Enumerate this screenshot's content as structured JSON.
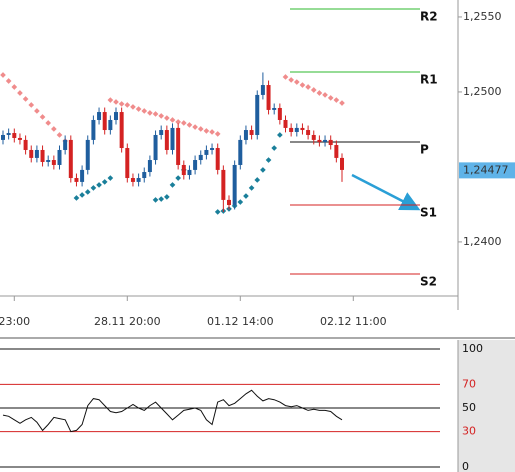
{
  "chart_data": [
    {
      "type": "candlestick",
      "categories": [
        null,
        null,
        "23:00",
        null,
        null,
        null,
        null,
        null,
        null,
        null,
        null,
        null,
        null,
        null,
        null,
        null,
        null,
        null,
        null,
        null,
        null,
        null,
        "28.11 20:00",
        null,
        null,
        null,
        null,
        null,
        null,
        null,
        null,
        null,
        null,
        null,
        null,
        null,
        null,
        null,
        null,
        null,
        null,
        null,
        "01.12 14:00",
        null,
        null,
        null,
        null,
        null,
        null,
        null,
        null,
        null,
        null,
        null,
        null,
        null,
        null,
        null,
        null,
        null,
        null,
        null,
        "02.12 11:00"
      ],
      "open": [
        1.2468,
        1.24713,
        1.24726,
        1.24693,
        1.2468,
        1.24613,
        1.2456,
        1.24613,
        1.24533,
        1.24546,
        1.24513,
        1.24613,
        1.2468,
        1.24426,
        1.244,
        1.2448,
        1.2468,
        1.24813,
        1.24866,
        1.24746,
        1.24813,
        1.24866,
        1.24626,
        1.24426,
        1.244,
        1.24426,
        1.24466,
        1.24546,
        1.24713,
        1.24746,
        1.24613,
        1.2476,
        1.24513,
        1.24446,
        1.2448,
        1.24546,
        1.2458,
        1.24613,
        1.24626,
        1.2448,
        1.2428,
        1.24246,
        1.24513,
        1.2468,
        1.24746,
        1.24713,
        1.2498,
        1.25046,
        1.2488,
        1.24893,
        1.24813,
        1.2476,
        1.24733,
        1.2476,
        1.24746,
        1.24713,
        1.2468,
        1.24666,
        1.2468,
        1.24646,
        1.2456,
        null,
        null
      ],
      "high": [
        1.24743,
        1.24756,
        1.24756,
        1.24723,
        1.2471,
        1.24643,
        1.24643,
        1.24643,
        1.24576,
        1.24576,
        1.24643,
        1.2471,
        1.2471,
        1.24456,
        1.2451,
        1.2471,
        1.24843,
        1.24896,
        1.24896,
        1.24843,
        1.24896,
        1.24896,
        1.24656,
        1.24456,
        1.24456,
        1.24496,
        1.24576,
        1.24743,
        1.24776,
        1.24776,
        1.2479,
        1.2479,
        1.24543,
        1.2451,
        1.24576,
        1.2461,
        1.24643,
        1.24656,
        1.24656,
        1.2451,
        1.2431,
        1.24543,
        1.2471,
        1.24776,
        1.24776,
        1.2501,
        1.2513,
        1.25076,
        1.24923,
        1.24923,
        1.24843,
        1.2479,
        1.2479,
        1.2479,
        1.24776,
        1.24743,
        1.2471,
        1.2471,
        1.2471,
        1.24676,
        1.2459,
        null,
        null
      ],
      "low": [
        1.2465,
        1.24683,
        1.24663,
        1.2465,
        1.24583,
        1.2453,
        1.2453,
        1.24503,
        1.24503,
        1.24483,
        1.24483,
        1.24583,
        1.24396,
        1.2437,
        1.2437,
        1.2445,
        1.2465,
        1.24783,
        1.24716,
        1.24716,
        1.24783,
        1.24596,
        1.24396,
        1.2437,
        1.2437,
        1.24396,
        1.24436,
        1.24516,
        1.24683,
        1.24583,
        1.24583,
        1.24483,
        1.24416,
        1.24416,
        1.2445,
        1.24516,
        1.2455,
        1.24583,
        1.2445,
        1.242,
        1.24216,
        1.24216,
        1.24483,
        1.2465,
        1.24683,
        1.24683,
        1.2495,
        1.2485,
        1.2485,
        1.24783,
        1.2473,
        1.24703,
        1.24703,
        1.24716,
        1.24683,
        1.2465,
        1.24636,
        1.24636,
        1.24616,
        1.2453,
        1.244,
        null,
        null
      ],
      "close": [
        1.24713,
        1.24726,
        1.24693,
        1.2468,
        1.24613,
        1.2456,
        1.24613,
        1.24533,
        1.24546,
        1.24513,
        1.24613,
        1.2468,
        1.24426,
        1.244,
        1.2448,
        1.2468,
        1.24813,
        1.24866,
        1.24746,
        1.24813,
        1.24866,
        1.24626,
        1.24426,
        1.244,
        1.24426,
        1.24466,
        1.24546,
        1.24713,
        1.24746,
        1.24613,
        1.2476,
        1.24513,
        1.24446,
        1.2448,
        1.24546,
        1.2458,
        1.24613,
        1.24626,
        1.2448,
        1.2428,
        1.24246,
        1.24513,
        1.2468,
        1.24746,
        1.24713,
        1.2498,
        1.25046,
        1.2488,
        1.24893,
        1.24813,
        1.2476,
        1.24733,
        1.2476,
        1.24746,
        1.24713,
        1.2468,
        1.24666,
        1.2468,
        1.24646,
        1.2456,
        1.2448,
        null,
        null
      ],
      "up_color": "#1f5e9e",
      "down_color": "#d42222",
      "overlays": [
        {
          "color": "#f08c8c",
          "values": [
            1.25113,
            1.25073,
            1.25033,
            1.24993,
            1.24953,
            1.24913,
            1.24873,
            1.24833,
            1.24793,
            1.24753,
            1.24713,
            1.24673,
            null,
            null,
            null,
            null,
            null,
            null,
            null,
            1.24946,
            1.24933,
            1.2492,
            1.24913,
            1.249,
            1.24886,
            1.24873,
            1.2486,
            1.24853,
            1.2484,
            1.24826,
            1.24813,
            1.248,
            1.24793,
            1.2478,
            1.24766,
            1.24753,
            1.2474,
            1.24733,
            1.2472,
            null,
            null,
            null,
            null,
            null,
            null,
            null,
            null,
            null,
            null,
            null,
            1.251,
            1.2508,
            1.25066,
            1.25046,
            1.25033,
            1.25013,
            1.24993,
            1.2498,
            1.2496,
            1.24946,
            1.24926,
            null,
            null
          ]
        },
        {
          "color": "#1a7f9a",
          "values": [
            null,
            null,
            null,
            null,
            null,
            null,
            null,
            null,
            null,
            null,
            null,
            null,
            null,
            1.24293,
            1.24313,
            1.24333,
            1.2436,
            1.2438,
            1.244,
            1.24426,
            null,
            null,
            null,
            null,
            null,
            null,
            null,
            1.2428,
            1.24286,
            1.243,
            1.2438,
            1.24426,
            1.2448,
            null,
            null,
            null,
            null,
            null,
            1.242,
            1.24206,
            1.2422,
            1.2424,
            1.24266,
            1.24306,
            1.2436,
            1.24413,
            1.2448,
            1.24546,
            1.24626,
            1.24713,
            null,
            null,
            null,
            null,
            null,
            null,
            null,
            null,
            null,
            null,
            null,
            null,
            null
          ]
        }
      ],
      "levels": [
        {
          "label": "R2",
          "value": 1.25553,
          "color": "#2db82d"
        },
        {
          "label": "R1",
          "value": 1.25133,
          "color": "#2db82d"
        },
        {
          "label": "P",
          "value": 1.24666,
          "color": "#111111"
        },
        {
          "label": "S1",
          "value": 1.24246,
          "color": "#d42222"
        },
        {
          "label": "S2",
          "value": 1.23786,
          "color": "#d42222"
        }
      ],
      "ylim": [
        1.23546,
        1.25613
      ],
      "yticks": [
        {
          "value": 1.24,
          "label": "1,2400"
        },
        {
          "value": 1.25,
          "label": "1,2500"
        },
        {
          "value": 1.255,
          "label": "1,2550"
        }
      ],
      "last_price": {
        "value": 1.24477,
        "label": "1,24477"
      }
    },
    {
      "type": "line",
      "values": [
        44,
        43,
        40,
        37,
        40,
        42,
        38,
        31,
        36,
        42,
        41,
        40,
        30,
        31,
        36,
        52,
        58,
        57,
        52,
        47,
        46,
        47,
        50,
        53,
        50,
        48,
        52,
        55,
        50,
        45,
        40,
        44,
        48,
        49,
        50,
        48,
        40,
        36,
        55,
        57,
        52,
        54,
        58,
        62,
        65,
        60,
        56,
        58,
        57,
        55,
        52,
        51,
        52,
        50,
        48,
        49,
        48,
        48,
        47,
        43,
        40,
        null,
        null
      ],
      "color": "#111111",
      "ylim": [
        0,
        100
      ],
      "yticks": [
        0,
        30,
        50,
        70,
        100
      ],
      "tick_colors": [
        "#111111",
        "#d42222",
        "#111111",
        "#d42222",
        "#111111"
      ]
    }
  ]
}
